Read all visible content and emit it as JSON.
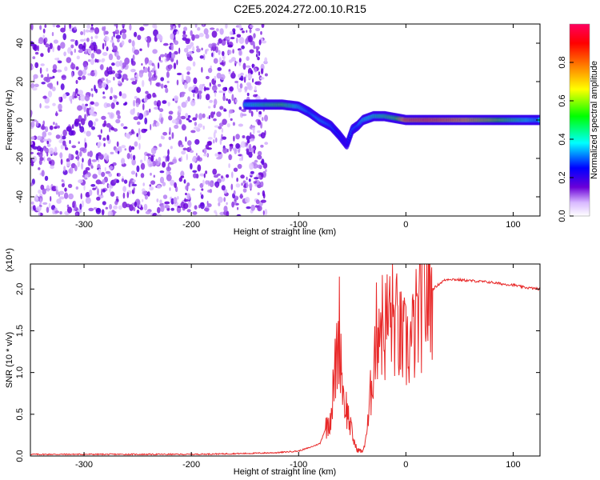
{
  "title": "C2E5.2024.272.00.10.R15",
  "chart_data": [
    {
      "type": "heatmap",
      "xlabel": "Height of straight line (km)",
      "ylabel": "Frequency (Hz)",
      "xlim": [
        -350,
        125
      ],
      "ylim": [
        -50,
        50
      ],
      "x_ticks": [
        -300,
        -200,
        -100,
        0,
        100
      ],
      "y_ticks": [
        -40,
        -20,
        0,
        20,
        40
      ],
      "colorbar": {
        "label": "Normalized spectral amplitude",
        "range": [
          0,
          1
        ],
        "ticks": [
          "0.0",
          "0.2",
          "0.4",
          "0.6",
          "0.8"
        ],
        "colors": [
          "#ffffff",
          "#d8b8ff",
          "#6a00d8",
          "#0000ff",
          "#00ffff",
          "#00ff00",
          "#ffff00",
          "#ff8000",
          "#ff0000",
          "#ff0060"
        ]
      },
      "noise_region_x": [
        -350,
        -130
      ],
      "ridge": {
        "x": [
          -150,
          -130,
          -115,
          -100,
          -90,
          -80,
          -70,
          -62,
          -55,
          -50,
          -45,
          -40,
          -30,
          -20,
          -10,
          0,
          20,
          50,
          80,
          100,
          125
        ],
        "frequency": [
          8,
          8,
          8,
          7,
          4,
          0,
          -3,
          -8,
          -13,
          -5,
          -3,
          0,
          2,
          2,
          1,
          0,
          0,
          0,
          0,
          0,
          0
        ],
        "amplitude": [
          0.45,
          0.55,
          0.6,
          0.45,
          0.35,
          0.4,
          0.35,
          0.3,
          0.25,
          0.35,
          0.35,
          0.45,
          0.5,
          0.55,
          0.6,
          0.9,
          0.95,
          0.85,
          0.7,
          0.55,
          0.4
        ]
      }
    },
    {
      "type": "line",
      "xlabel": "Height of straight line (km)",
      "ylabel": "SNR (10 * v/v)",
      "y_multiplier": "(x10⁴)",
      "xlim": [
        -350,
        125
      ],
      "ylim": [
        0,
        2.3
      ],
      "x_ticks": [
        -300,
        -200,
        -100,
        0,
        100
      ],
      "y_ticks": [
        "0.0",
        "0.5",
        "1.0",
        "1.5",
        "2.0"
      ],
      "color": "#e82828",
      "series": [
        {
          "x": [
            -350,
            -300,
            -250,
            -200,
            -150,
            -120,
            -100,
            -90,
            -80,
            -70,
            -66,
            -62,
            -58,
            -54,
            -50,
            -46,
            -40,
            -35,
            -30,
            -25,
            -20,
            -15,
            -10,
            -5,
            0,
            5,
            10,
            15,
            20,
            25,
            30,
            35,
            40,
            50,
            60,
            70,
            80,
            90,
            100,
            110,
            125
          ],
          "y": [
            0.02,
            0.02,
            0.02,
            0.02,
            0.03,
            0.04,
            0.06,
            0.1,
            0.15,
            0.5,
            1.0,
            1.55,
            0.7,
            0.5,
            0.25,
            0.08,
            0.05,
            0.4,
            1.2,
            1.7,
            1.5,
            1.7,
            1.6,
            1.4,
            1.3,
            1.35,
            1.6,
            1.8,
            1.9,
            2.0,
            2.05,
            2.1,
            2.12,
            2.11,
            2.1,
            2.09,
            2.08,
            2.06,
            2.05,
            2.02,
            2.0
          ]
        }
      ]
    }
  ]
}
